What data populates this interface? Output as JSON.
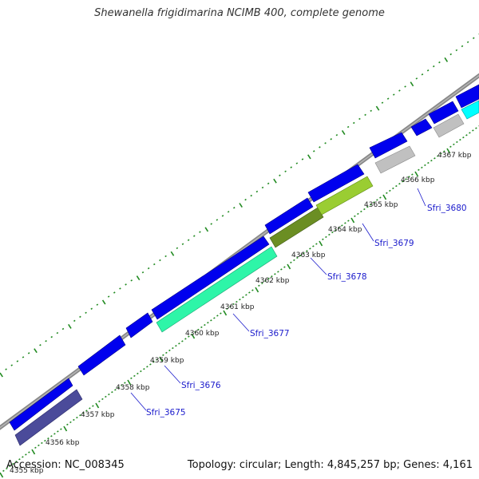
{
  "title": "Shewanella frigidimarina NCIMB 400, complete genome",
  "footer": {
    "accession": "Accession: NC_008345",
    "summary": "Topology: circular; Length: 4,845,257 bp; Genes: 4,161"
  },
  "colors": {
    "backbone": "#888888",
    "ruler": "#228b22",
    "cds": "#0000ee",
    "gene_label": "#1a1acc",
    "sfri_3675": "#4b4b9a",
    "sfri_3677": "#2ef5a8",
    "sfri_3678": "#6b8e23",
    "sfri_3679": "#9acd32",
    "sfri_3680": "#c0c0c0",
    "cyan_feature": "#00ffff"
  },
  "ticks": [
    "4355 kbp",
    "4356 kbp",
    "4357 kbp",
    "4358 kbp",
    "4359 kbp",
    "4360 kbp",
    "4361 kbp",
    "4362 kbp",
    "4363 kbp",
    "4364 kbp",
    "4365 kbp",
    "4366 kbp",
    "4367 kbp"
  ],
  "gene_labels": [
    "Sfri_3675",
    "Sfri_3676",
    "Sfri_3677",
    "Sfri_3678",
    "Sfri_3679",
    "Sfri_3680"
  ]
}
